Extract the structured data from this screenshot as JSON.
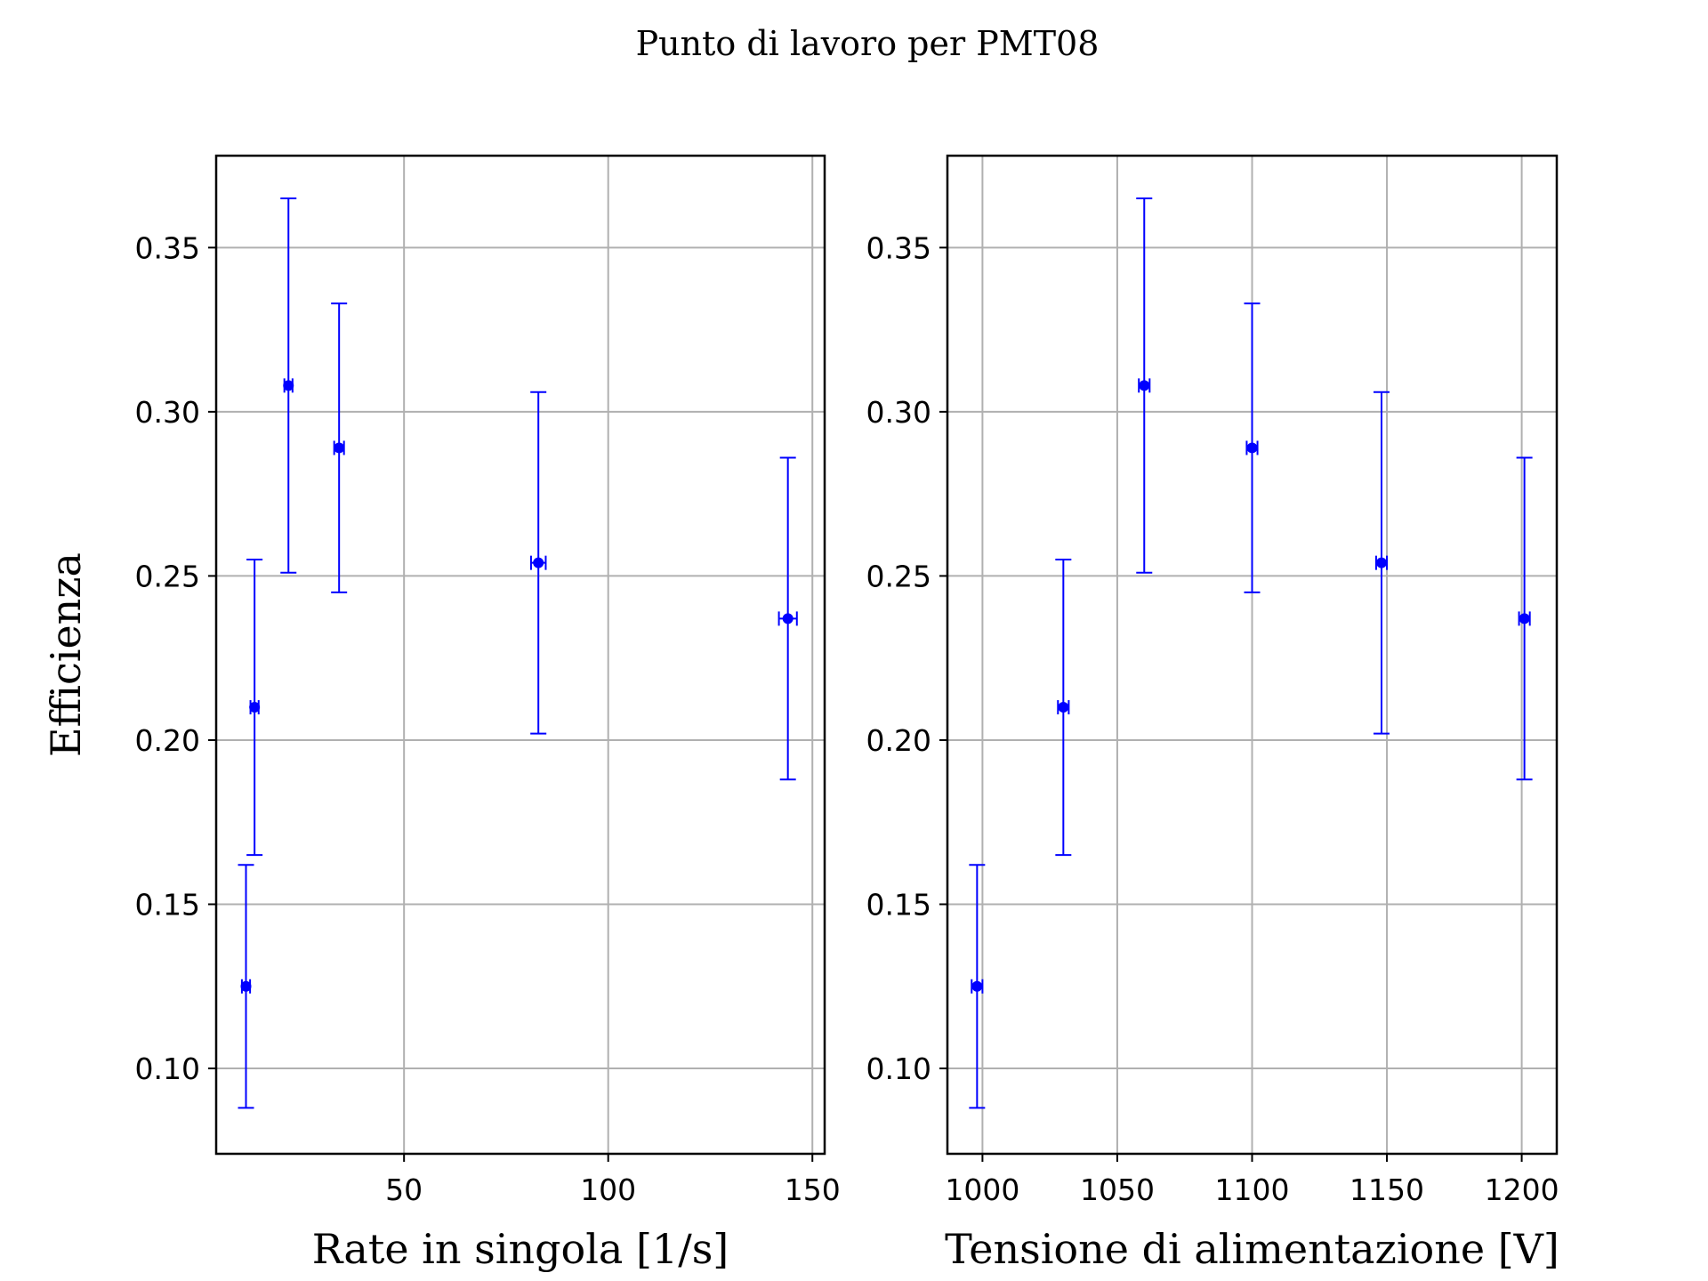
{
  "figure": {
    "title": "Punto di lavoro per PMT08",
    "marker_color": "#0000ff",
    "grid_color": "#b0b0b0"
  },
  "chart_data": [
    {
      "type": "scatter",
      "title": "",
      "xlabel": "Rate in singola [1/s]",
      "ylabel": "Efficienza",
      "xlim": [
        4,
        153
      ],
      "ylim": [
        0.074,
        0.378
      ],
      "xticks": [
        50,
        100,
        150
      ],
      "yticks": [
        0.1,
        0.15,
        0.2,
        0.25,
        0.3,
        0.35
      ],
      "xtick_labels": [
        "50",
        "100",
        "150"
      ],
      "ytick_labels": [
        "0.10",
        "0.15",
        "0.20",
        "0.25",
        "0.30",
        "0.35"
      ],
      "grid": true,
      "series": [
        {
          "x": [
            11.3,
            13.4,
            21.7,
            34.1,
            82.9,
            144.0
          ],
          "y": [
            0.125,
            0.21,
            0.308,
            0.289,
            0.254,
            0.237
          ],
          "xerr": [
            1.0,
            1.0,
            1.0,
            1.2,
            1.8,
            2.2
          ],
          "yerr": [
            0.037,
            0.045,
            0.057,
            0.044,
            0.052,
            0.049
          ]
        }
      ]
    },
    {
      "type": "scatter",
      "title": "",
      "xlabel": "Tensione di alimentazione [V]",
      "ylabel": "",
      "xlim": [
        987,
        1213
      ],
      "ylim": [
        0.074,
        0.378
      ],
      "xticks": [
        1000,
        1050,
        1100,
        1150,
        1200
      ],
      "yticks": [
        0.1,
        0.15,
        0.2,
        0.25,
        0.3,
        0.35
      ],
      "xtick_labels": [
        "1000",
        "1050",
        "1100",
        "1150",
        "1200"
      ],
      "ytick_labels": [
        "0.10",
        "0.15",
        "0.20",
        "0.25",
        "0.30",
        "0.35"
      ],
      "grid": true,
      "series": [
        {
          "x": [
            998,
            1030,
            1060,
            1100,
            1148,
            1201
          ],
          "y": [
            0.125,
            0.21,
            0.308,
            0.289,
            0.254,
            0.237
          ],
          "xerr": [
            2,
            2,
            2,
            2,
            2,
            2
          ],
          "yerr": [
            0.037,
            0.045,
            0.057,
            0.044,
            0.052,
            0.049
          ]
        }
      ]
    }
  ]
}
